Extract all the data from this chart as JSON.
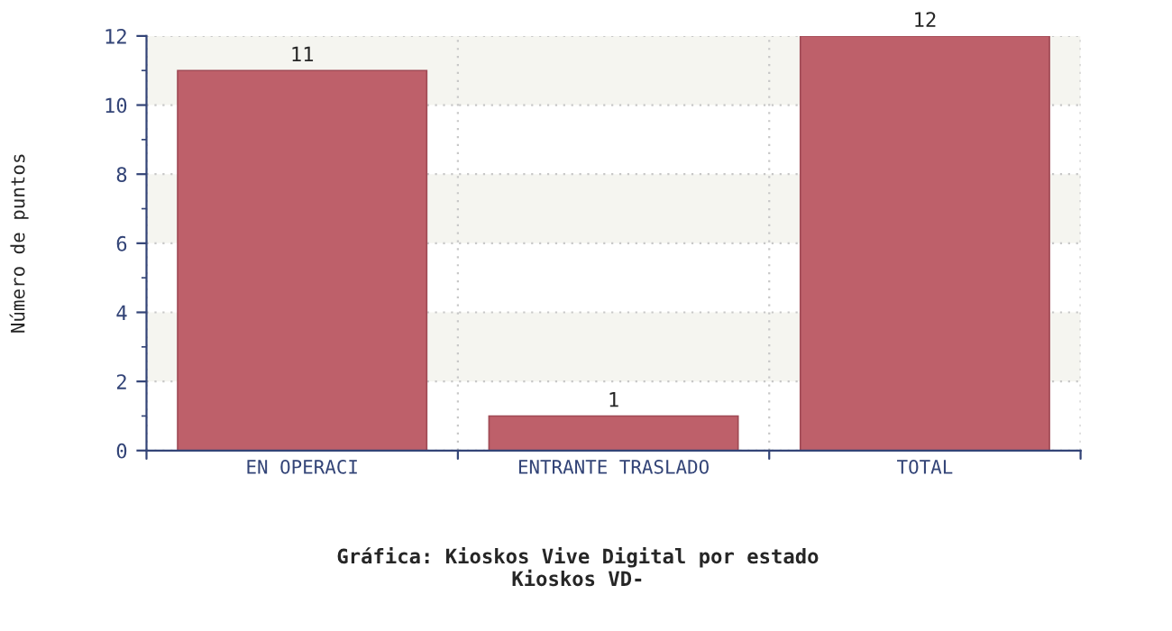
{
  "chart_data": {
    "type": "bar",
    "title": "Gráfica: Kioskos Vive Digital por estado",
    "subtitle": "Kioskos VD-",
    "ylabel": "Número de puntos",
    "categories": [
      "EN OPERACI",
      "ENTRANTE TRASLADO",
      "TOTAL"
    ],
    "values": [
      11,
      1,
      12
    ],
    "color": "#be606a",
    "data_labels": true,
    "ylim": [
      0,
      12
    ],
    "yticks": [
      0,
      2,
      4,
      6,
      8,
      10,
      12
    ],
    "grid": true,
    "bands": [
      {
        "axis": "y",
        "from": 2,
        "to": 4,
        "color": "#f5f5f0"
      },
      {
        "axis": "y",
        "from": 6,
        "to": 8,
        "color": "#f5f5f0"
      },
      {
        "axis": "y",
        "from": 10,
        "to": 12,
        "color": "#f5f5f0"
      }
    ]
  }
}
